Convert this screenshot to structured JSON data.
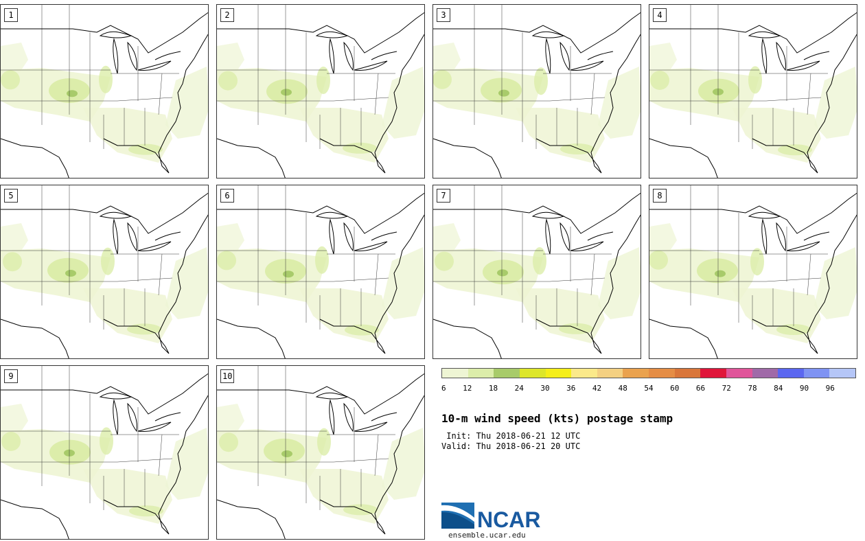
{
  "panels": [
    {
      "label": "1"
    },
    {
      "label": "2"
    },
    {
      "label": "3"
    },
    {
      "label": "4"
    },
    {
      "label": "5"
    },
    {
      "label": "6"
    },
    {
      "label": "7"
    },
    {
      "label": "8"
    },
    {
      "label": "9"
    },
    {
      "label": "10"
    }
  ],
  "title": "10-m wind speed (kts) postage stamp",
  "init_text": " Init: Thu 2018-06-21 12 UTC",
  "valid_text": "Valid: Thu 2018-06-21 20 UTC",
  "colorbar": {
    "ticks": [
      "6",
      "12",
      "18",
      "24",
      "30",
      "36",
      "42",
      "48",
      "54",
      "60",
      "66",
      "72",
      "78",
      "84",
      "90",
      "96"
    ],
    "colors": [
      "#eef5d4",
      "#dcedaa",
      "#a8cb6a",
      "#dde62a",
      "#f5ee1a",
      "#fbe98a",
      "#f4d082",
      "#eaa24e",
      "#e58d45",
      "#d9763a",
      "#e0163a",
      "#e0559a",
      "#a06aa8",
      "#5b67f0",
      "#7f93f3",
      "#b5c6f7"
    ]
  },
  "logo": {
    "text": "NCAR",
    "url": "ensemble.ucar.edu"
  },
  "colors": {
    "light_green": "#eef5d4",
    "mid_green": "#dcedaa",
    "dark_green": "#a8cb6a",
    "coast": "#000000",
    "state_line": "#333333"
  }
}
